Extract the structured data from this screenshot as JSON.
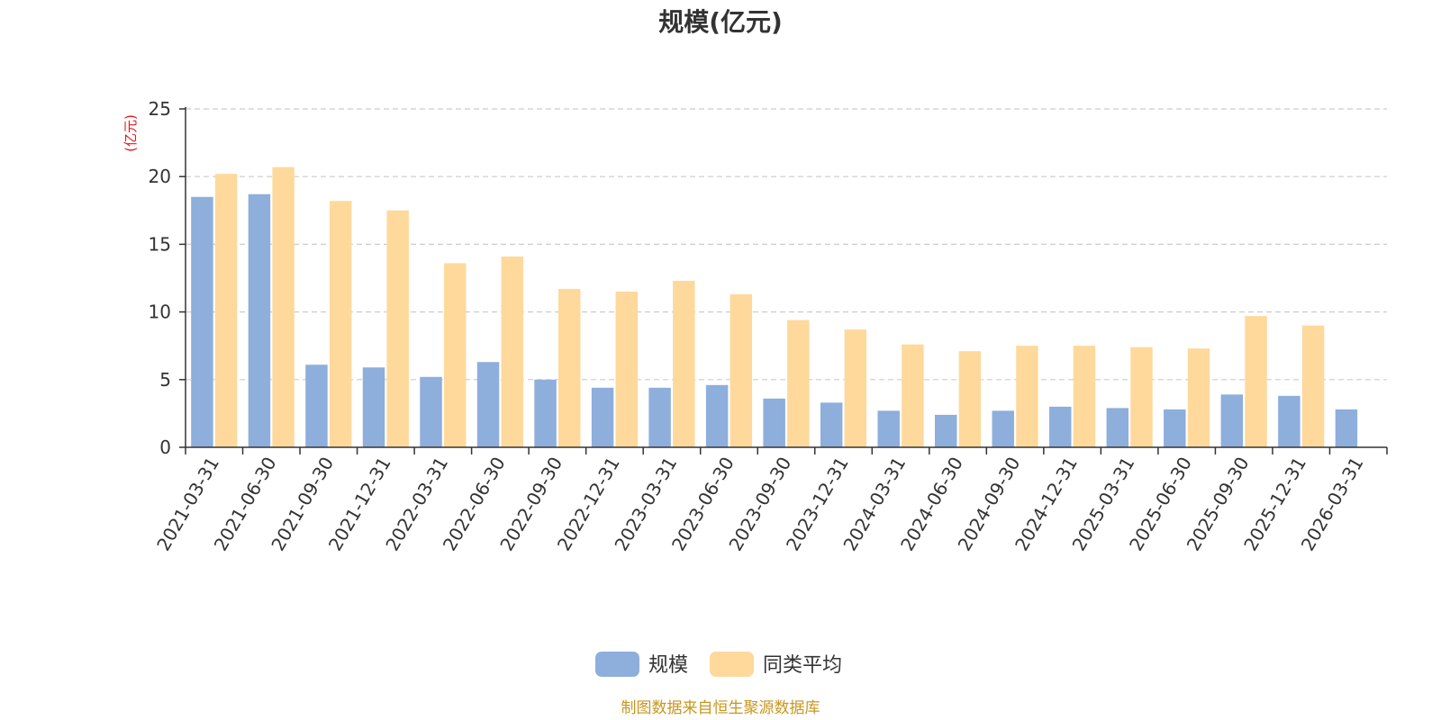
{
  "chart_data": {
    "type": "bar",
    "title": "规模(亿元)",
    "ylabel": "(亿元)",
    "xlabel": "",
    "ylim": [
      0,
      25
    ],
    "yticks": [
      0,
      5,
      10,
      15,
      20,
      25
    ],
    "grid": true,
    "legend_position": "bottom",
    "categories": [
      "2021-03-31",
      "2021-06-30",
      "2021-09-30",
      "2021-12-31",
      "2022-03-31",
      "2022-06-30",
      "2022-09-30",
      "2022-12-31",
      "2023-03-31",
      "2023-06-30",
      "2023-09-30",
      "2023-12-31",
      "2024-03-31",
      "2024-06-30",
      "2024-09-30",
      "2024-12-31",
      "2025-03-31",
      "2025-06-30",
      "2025-09-30",
      "2025-12-31",
      "2026-03-31"
    ],
    "series": [
      {
        "name": "规模",
        "color": "#8eaedc",
        "values": [
          18.5,
          18.7,
          6.1,
          5.9,
          5.2,
          6.3,
          5.0,
          4.4,
          4.4,
          4.6,
          3.6,
          3.3,
          2.7,
          2.4,
          2.7,
          3.0,
          2.9,
          2.8,
          3.9,
          3.8,
          2.8
        ]
      },
      {
        "name": "同类平均",
        "color": "#fed99b",
        "values": [
          20.2,
          20.7,
          18.2,
          17.5,
          13.6,
          14.1,
          11.7,
          11.5,
          12.3,
          11.3,
          9.4,
          8.7,
          7.6,
          7.1,
          7.5,
          7.5,
          7.4,
          7.3,
          9.7,
          9.0,
          null
        ]
      }
    ]
  },
  "footer": {
    "source": "制图数据来自恒生聚源数据库"
  },
  "colors": {
    "unit_label": "#e8141a",
    "source_text": "#c8961e",
    "axis": "#333333",
    "grid": "#cccccc"
  }
}
